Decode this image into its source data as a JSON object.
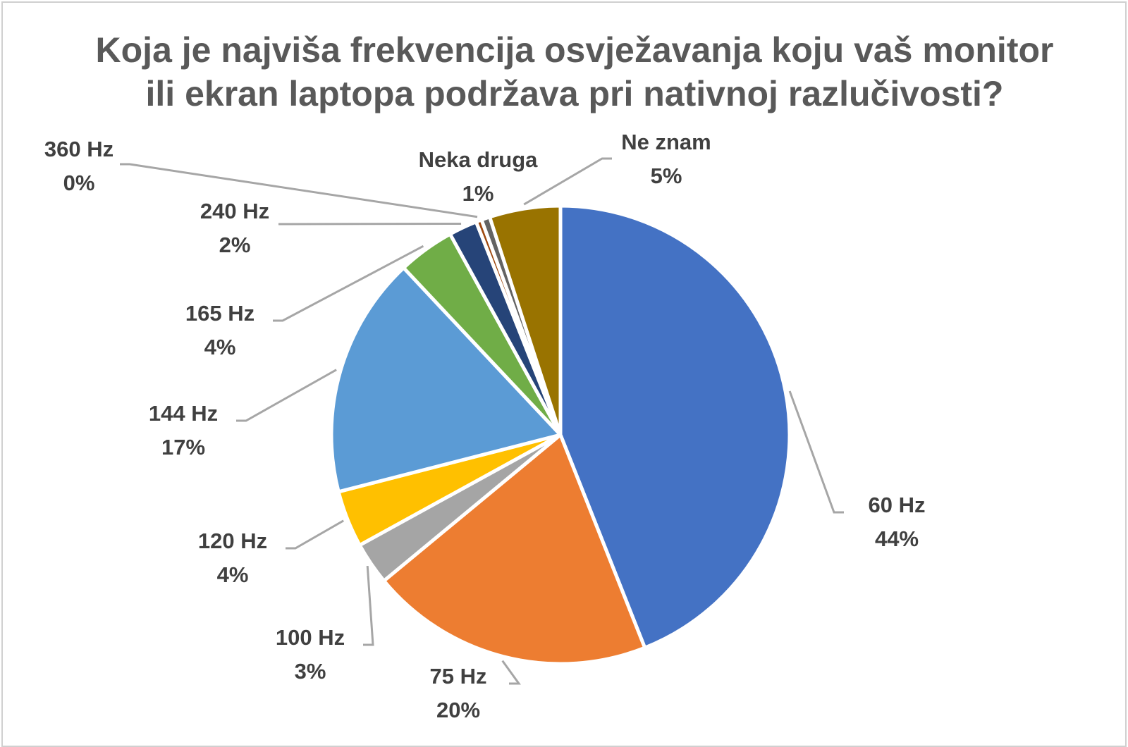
{
  "chart_data": {
    "type": "pie",
    "title_lines": [
      "Koja je najviša frekvencija osvježavanja koju vaš monitor",
      "ili ekran laptopa podržava pri nativnoj razlučivosti?"
    ],
    "slices": [
      {
        "category": "60 Hz",
        "value": 44,
        "label_text": "44%",
        "color": "#4472C4"
      },
      {
        "category": "75 Hz",
        "value": 20,
        "label_text": "20%",
        "color": "#ED7D31"
      },
      {
        "category": "100 Hz",
        "value": 3,
        "label_text": "3%",
        "color": "#A5A5A5"
      },
      {
        "category": "120 Hz",
        "value": 4,
        "label_text": "4%",
        "color": "#FFC000"
      },
      {
        "category": "144 Hz",
        "value": 17,
        "label_text": "17%",
        "color": "#5B9BD5"
      },
      {
        "category": "165 Hz",
        "value": 4,
        "label_text": "4%",
        "color": "#70AD47"
      },
      {
        "category": "240 Hz",
        "value": 2,
        "label_text": "2%",
        "color": "#264478"
      },
      {
        "category": "360 Hz",
        "value": 0.4,
        "label_text": "0%",
        "color": "#9E480E"
      },
      {
        "category": "Neka druga",
        "value": 0.6,
        "label_text": "1%",
        "color": "#636363"
      },
      {
        "category": "Ne znam",
        "value": 5,
        "label_text": "5%",
        "color": "#997300"
      }
    ],
    "start_angle": "12 o'clock",
    "direction": "clockwise",
    "legend": "none",
    "data_labels": "outside with leader lines"
  }
}
